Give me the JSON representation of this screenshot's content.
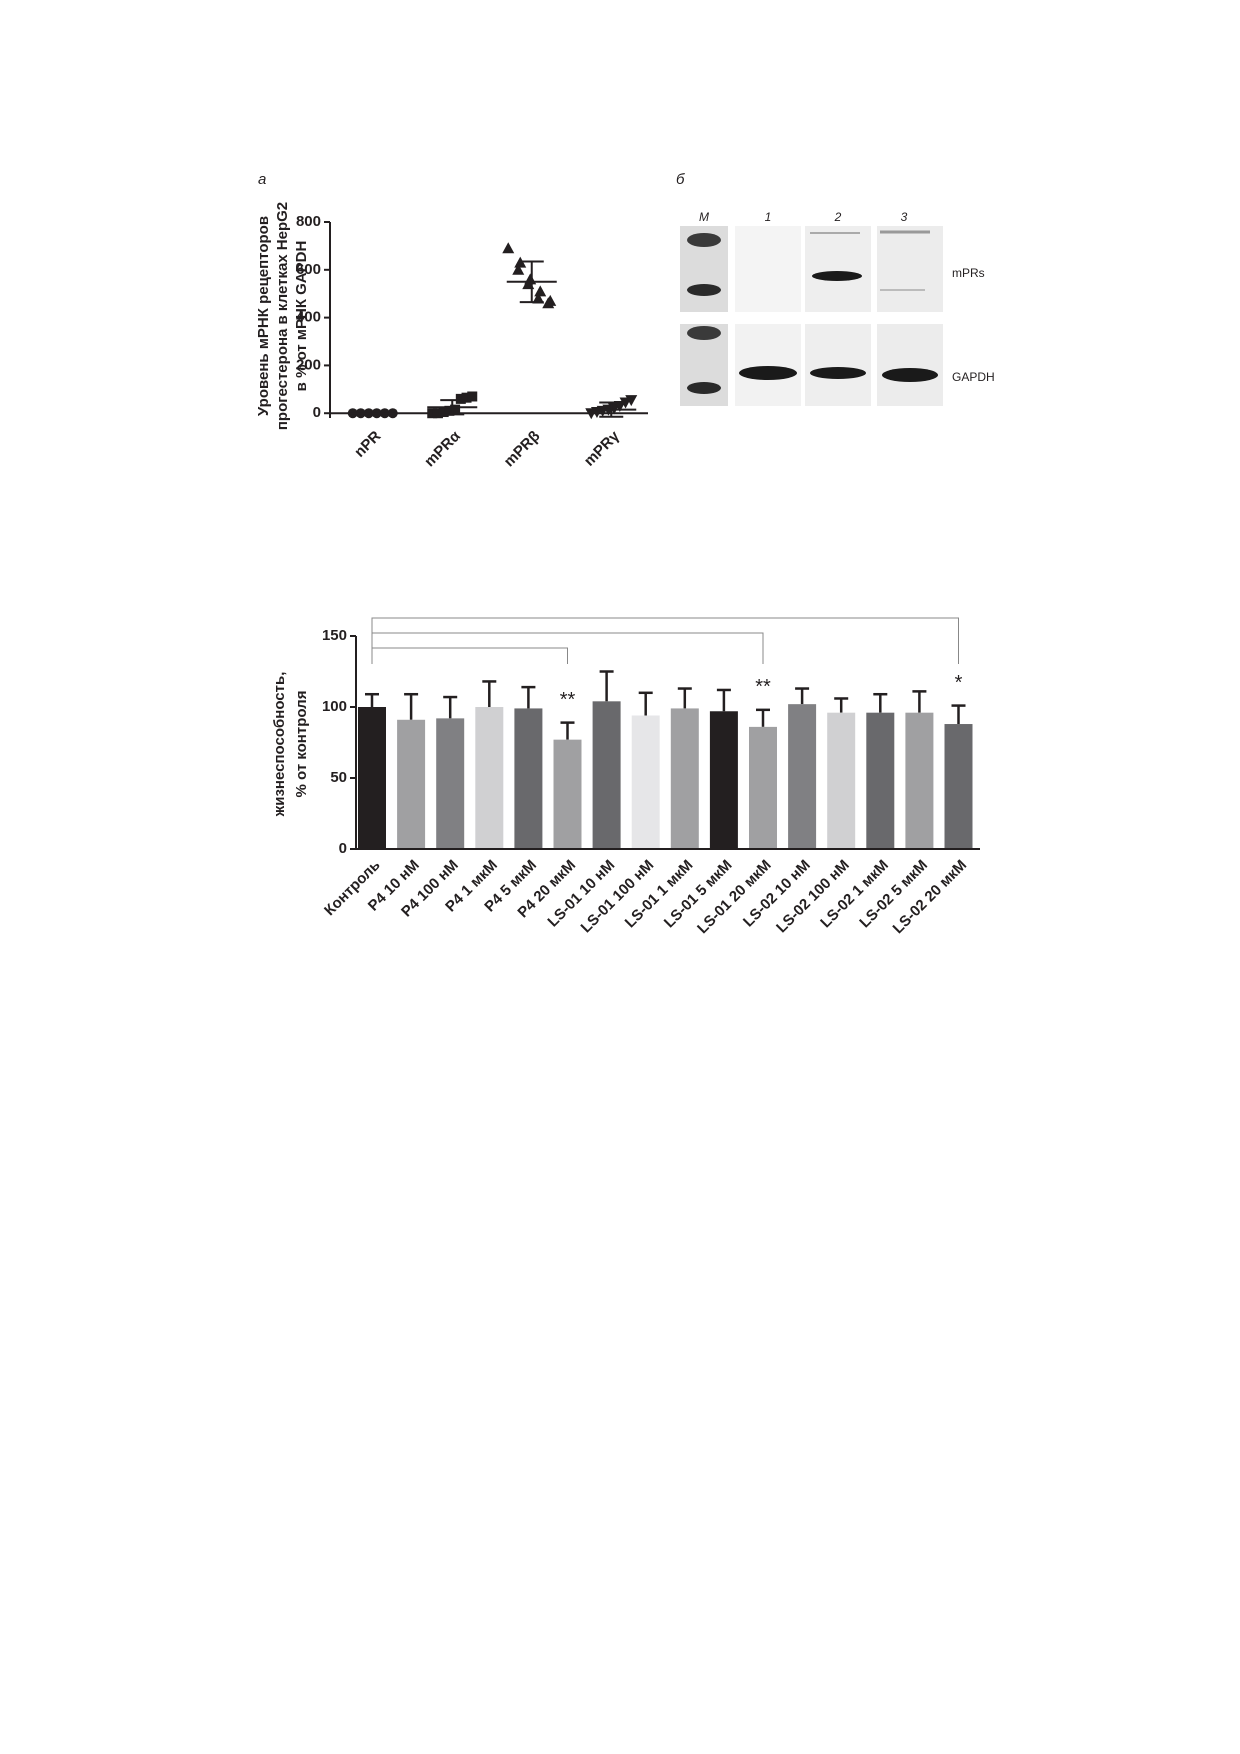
{
  "panel_labels": [
    "а",
    "б"
  ],
  "blot": {
    "lanes": [
      "M",
      "1",
      "2",
      "3"
    ],
    "bands": [
      "mPRs",
      "GAPDH"
    ]
  },
  "chart_data": [
    {
      "type": "dot",
      "ylabel": [
        "Уровень мРНК рецепторов",
        "прогестерона в клетках HepG2",
        "в % от мРНК GAPDH"
      ],
      "categories": [
        "nPR",
        "mPRα",
        "mPRβ",
        "mPRγ"
      ],
      "markers": [
        "circle",
        "square",
        "triangle",
        "triangle-down"
      ],
      "color": "#231f20",
      "points": [
        [
          0,
          0,
          0,
          0,
          0,
          0
        ],
        [
          0,
          0,
          5,
          10,
          15,
          60,
          65,
          70
        ],
        [
          690,
          630,
          600,
          560,
          540,
          510,
          480,
          470,
          460
        ],
        [
          0,
          5,
          10,
          15,
          20,
          30,
          45,
          55
        ]
      ],
      "mean": [
        0,
        25,
        550,
        15
      ],
      "sd": [
        0,
        30,
        85,
        30
      ],
      "ylim": [
        -20,
        800
      ],
      "yticks": [
        0,
        200,
        400,
        600,
        800
      ]
    },
    {
      "type": "bar",
      "ylabel": [
        "жизнеспособность,",
        "% от контроля"
      ],
      "categories": [
        "Контроль",
        "P4 10 нМ",
        "P4 100 нМ",
        "P4 1 мкМ",
        "P4 5 мкМ",
        "P4 20 мкМ",
        "LS-01 10 нМ",
        "LS-01 100 нМ",
        "LS-01 1 мкМ",
        "LS-01 5 мкМ",
        "LS-01 20 мкМ",
        "LS-02 10 нМ",
        "LS-02 100 нМ",
        "LS-02 1 мкМ",
        "LS-02 5 мкМ",
        "LS-02 20 мкМ"
      ],
      "values": [
        100,
        91,
        92,
        100,
        99,
        77,
        104,
        94,
        99,
        97,
        86,
        102,
        96,
        96,
        96,
        88
      ],
      "errors": [
        9,
        18,
        15,
        18,
        15,
        12,
        21,
        16,
        14,
        15,
        12,
        11,
        10,
        13,
        15,
        13
      ],
      "colors": [
        "#231f20",
        "#a0a0a2",
        "#808083",
        "#d0d0d2",
        "#69696c",
        "#a0a0a2",
        "#69696c",
        "#e6e6e8",
        "#a0a0a2",
        "#231f20",
        "#a0a0a2",
        "#808083",
        "#d0d0d2",
        "#69696c",
        "#a0a0a2",
        "#69696c"
      ],
      "annotations": [
        {
          "text": "**",
          "category": "P4 20 мкМ"
        },
        {
          "text": "**",
          "category": "LS-01 20 мкМ"
        },
        {
          "text": "*",
          "category": "LS-02 20 мкМ"
        }
      ],
      "ylim": [
        0,
        150
      ],
      "yticks": [
        0,
        50,
        100,
        150
      ]
    }
  ]
}
